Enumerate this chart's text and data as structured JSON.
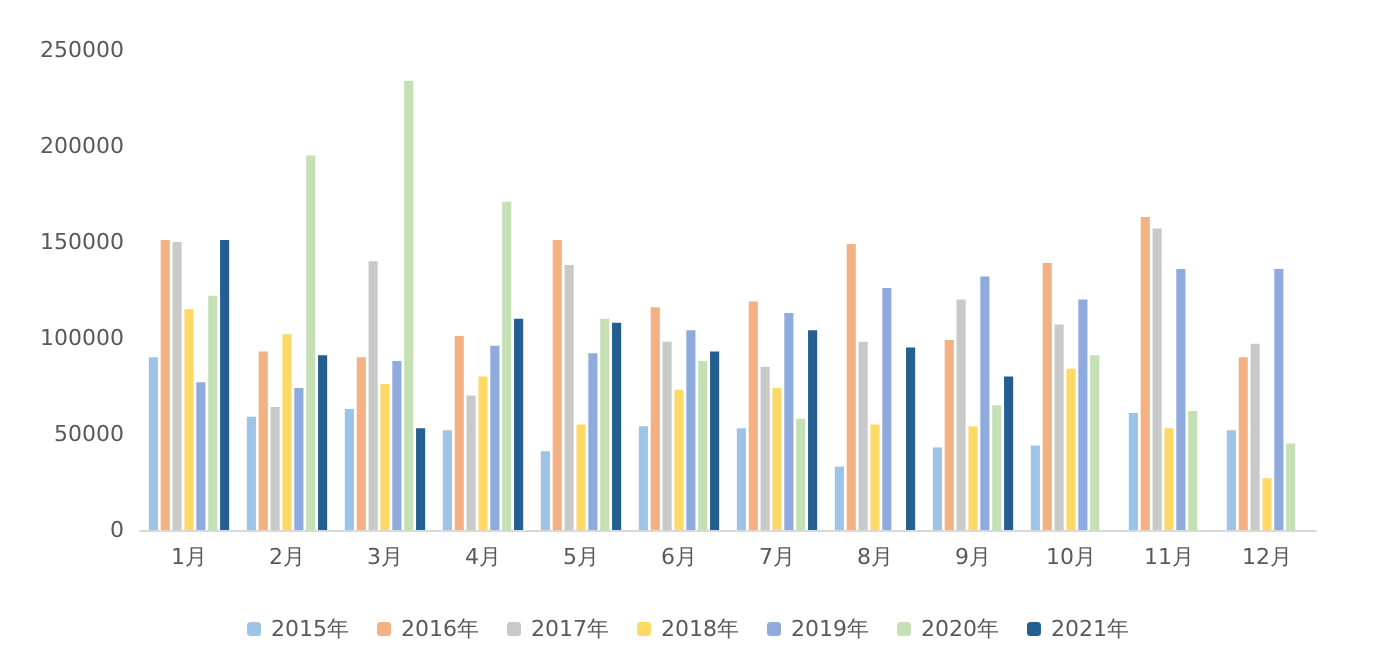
{
  "chart_data": {
    "type": "bar",
    "categories": [
      "1月",
      "2月",
      "3月",
      "4月",
      "5月",
      "6月",
      "7月",
      "8月",
      "9月",
      "10月",
      "11月",
      "12月"
    ],
    "series": [
      {
        "name": "2015年",
        "color": "#9dc3e6",
        "values": [
          90000,
          59000,
          63000,
          52000,
          41000,
          54000,
          53000,
          33000,
          43000,
          44000,
          61000,
          52000
        ]
      },
      {
        "name": "2016年",
        "color": "#f4b183",
        "values": [
          151000,
          93000,
          90000,
          101000,
          151000,
          116000,
          119000,
          149000,
          99000,
          139000,
          163000,
          90000
        ]
      },
      {
        "name": "2017年",
        "color": "#c9c9c9",
        "values": [
          150000,
          64000,
          140000,
          70000,
          138000,
          98000,
          85000,
          98000,
          120000,
          107000,
          157000,
          97000
        ]
      },
      {
        "name": "2018年",
        "color": "#ffd966",
        "values": [
          115000,
          102000,
          76000,
          80000,
          55000,
          73000,
          74000,
          55000,
          54000,
          84000,
          53000,
          27000
        ]
      },
      {
        "name": "2019年",
        "color": "#8faadc",
        "values": [
          77000,
          74000,
          88000,
          96000,
          92000,
          104000,
          113000,
          126000,
          132000,
          120000,
          136000,
          136000
        ]
      },
      {
        "name": "2020年",
        "color": "#c5e0b4",
        "values": [
          122000,
          195000,
          234000,
          171000,
          110000,
          88000,
          58000,
          null,
          65000,
          91000,
          62000,
          45000
        ]
      },
      {
        "name": "2021年",
        "color": "#255e91",
        "values": [
          151000,
          91000,
          53000,
          110000,
          108000,
          93000,
          104000,
          95000,
          80000,
          null,
          null,
          null
        ]
      }
    ],
    "ylim": [
      0,
      250000
    ],
    "yticks": [
      0,
      50000,
      100000,
      150000,
      200000,
      250000
    ],
    "grid": false,
    "legend": "bottom"
  }
}
